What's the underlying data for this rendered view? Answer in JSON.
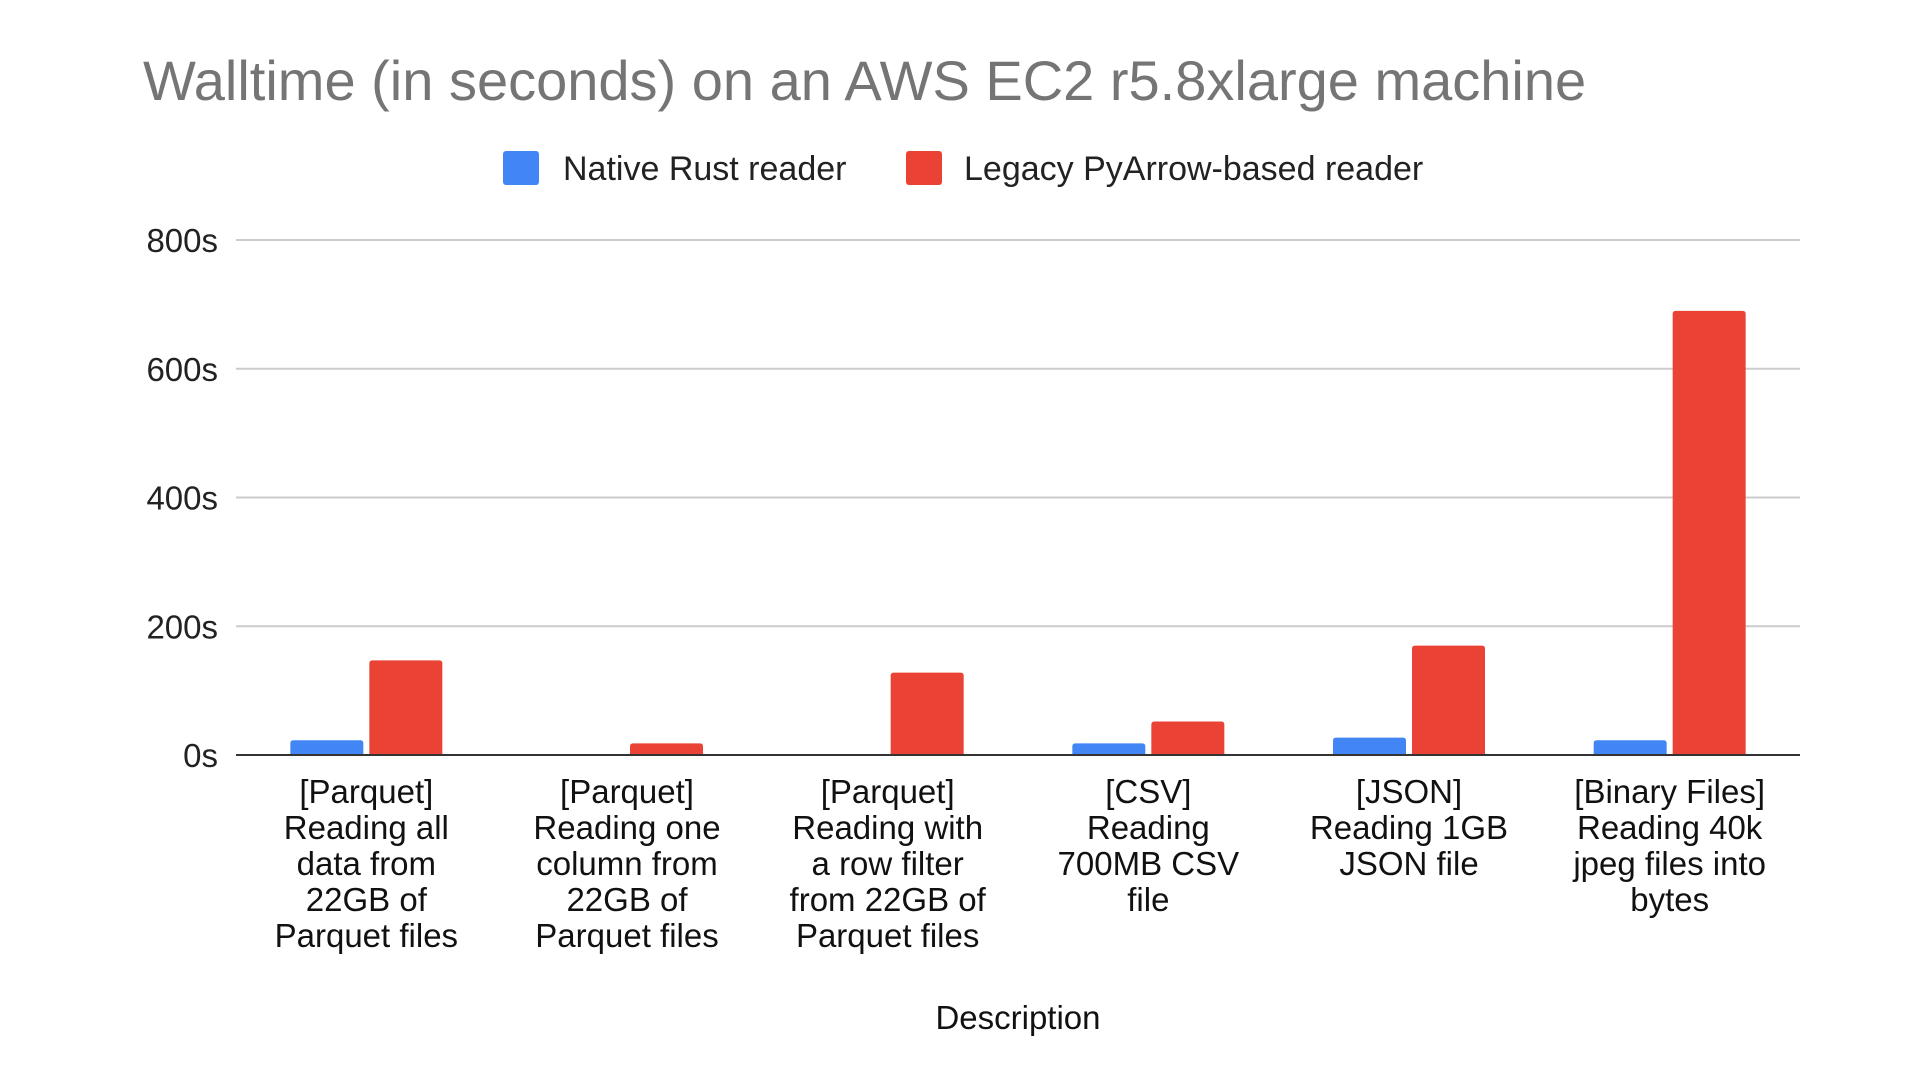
{
  "chart_data": {
    "type": "bar",
    "title": "Walltime (in seconds) on an AWS EC2 r5.8xlarge machine",
    "xlabel": "Description",
    "ylabel": "",
    "ylim": [
      0,
      800
    ],
    "yticks": [
      0,
      200,
      400,
      600,
      800
    ],
    "ytick_suffix": "s",
    "grid": true,
    "legend_position": "top-center",
    "categories": [
      [
        "[Parquet]",
        "Reading all",
        "data from",
        "22GB of",
        "Parquet files"
      ],
      [
        "[Parquet]",
        "Reading one",
        "column from",
        "22GB of",
        "Parquet files"
      ],
      [
        "[Parquet]",
        "Reading with",
        "a row filter",
        "from 22GB of",
        "Parquet files"
      ],
      [
        "[CSV]",
        "Reading",
        "700MB CSV",
        "file"
      ],
      [
        "[JSON]",
        "Reading 1GB",
        "JSON file"
      ],
      [
        "[Binary Files]",
        "Reading 40k",
        "jpeg files into",
        "bytes"
      ]
    ],
    "series": [
      {
        "name": "Native Rust reader",
        "color": "#4285f4",
        "values": [
          23,
          0,
          0,
          18,
          27,
          23
        ]
      },
      {
        "name": "Legacy PyArrow-based reader",
        "color": "#ea4335",
        "values": [
          147,
          18,
          128,
          52,
          170,
          690
        ]
      }
    ]
  }
}
